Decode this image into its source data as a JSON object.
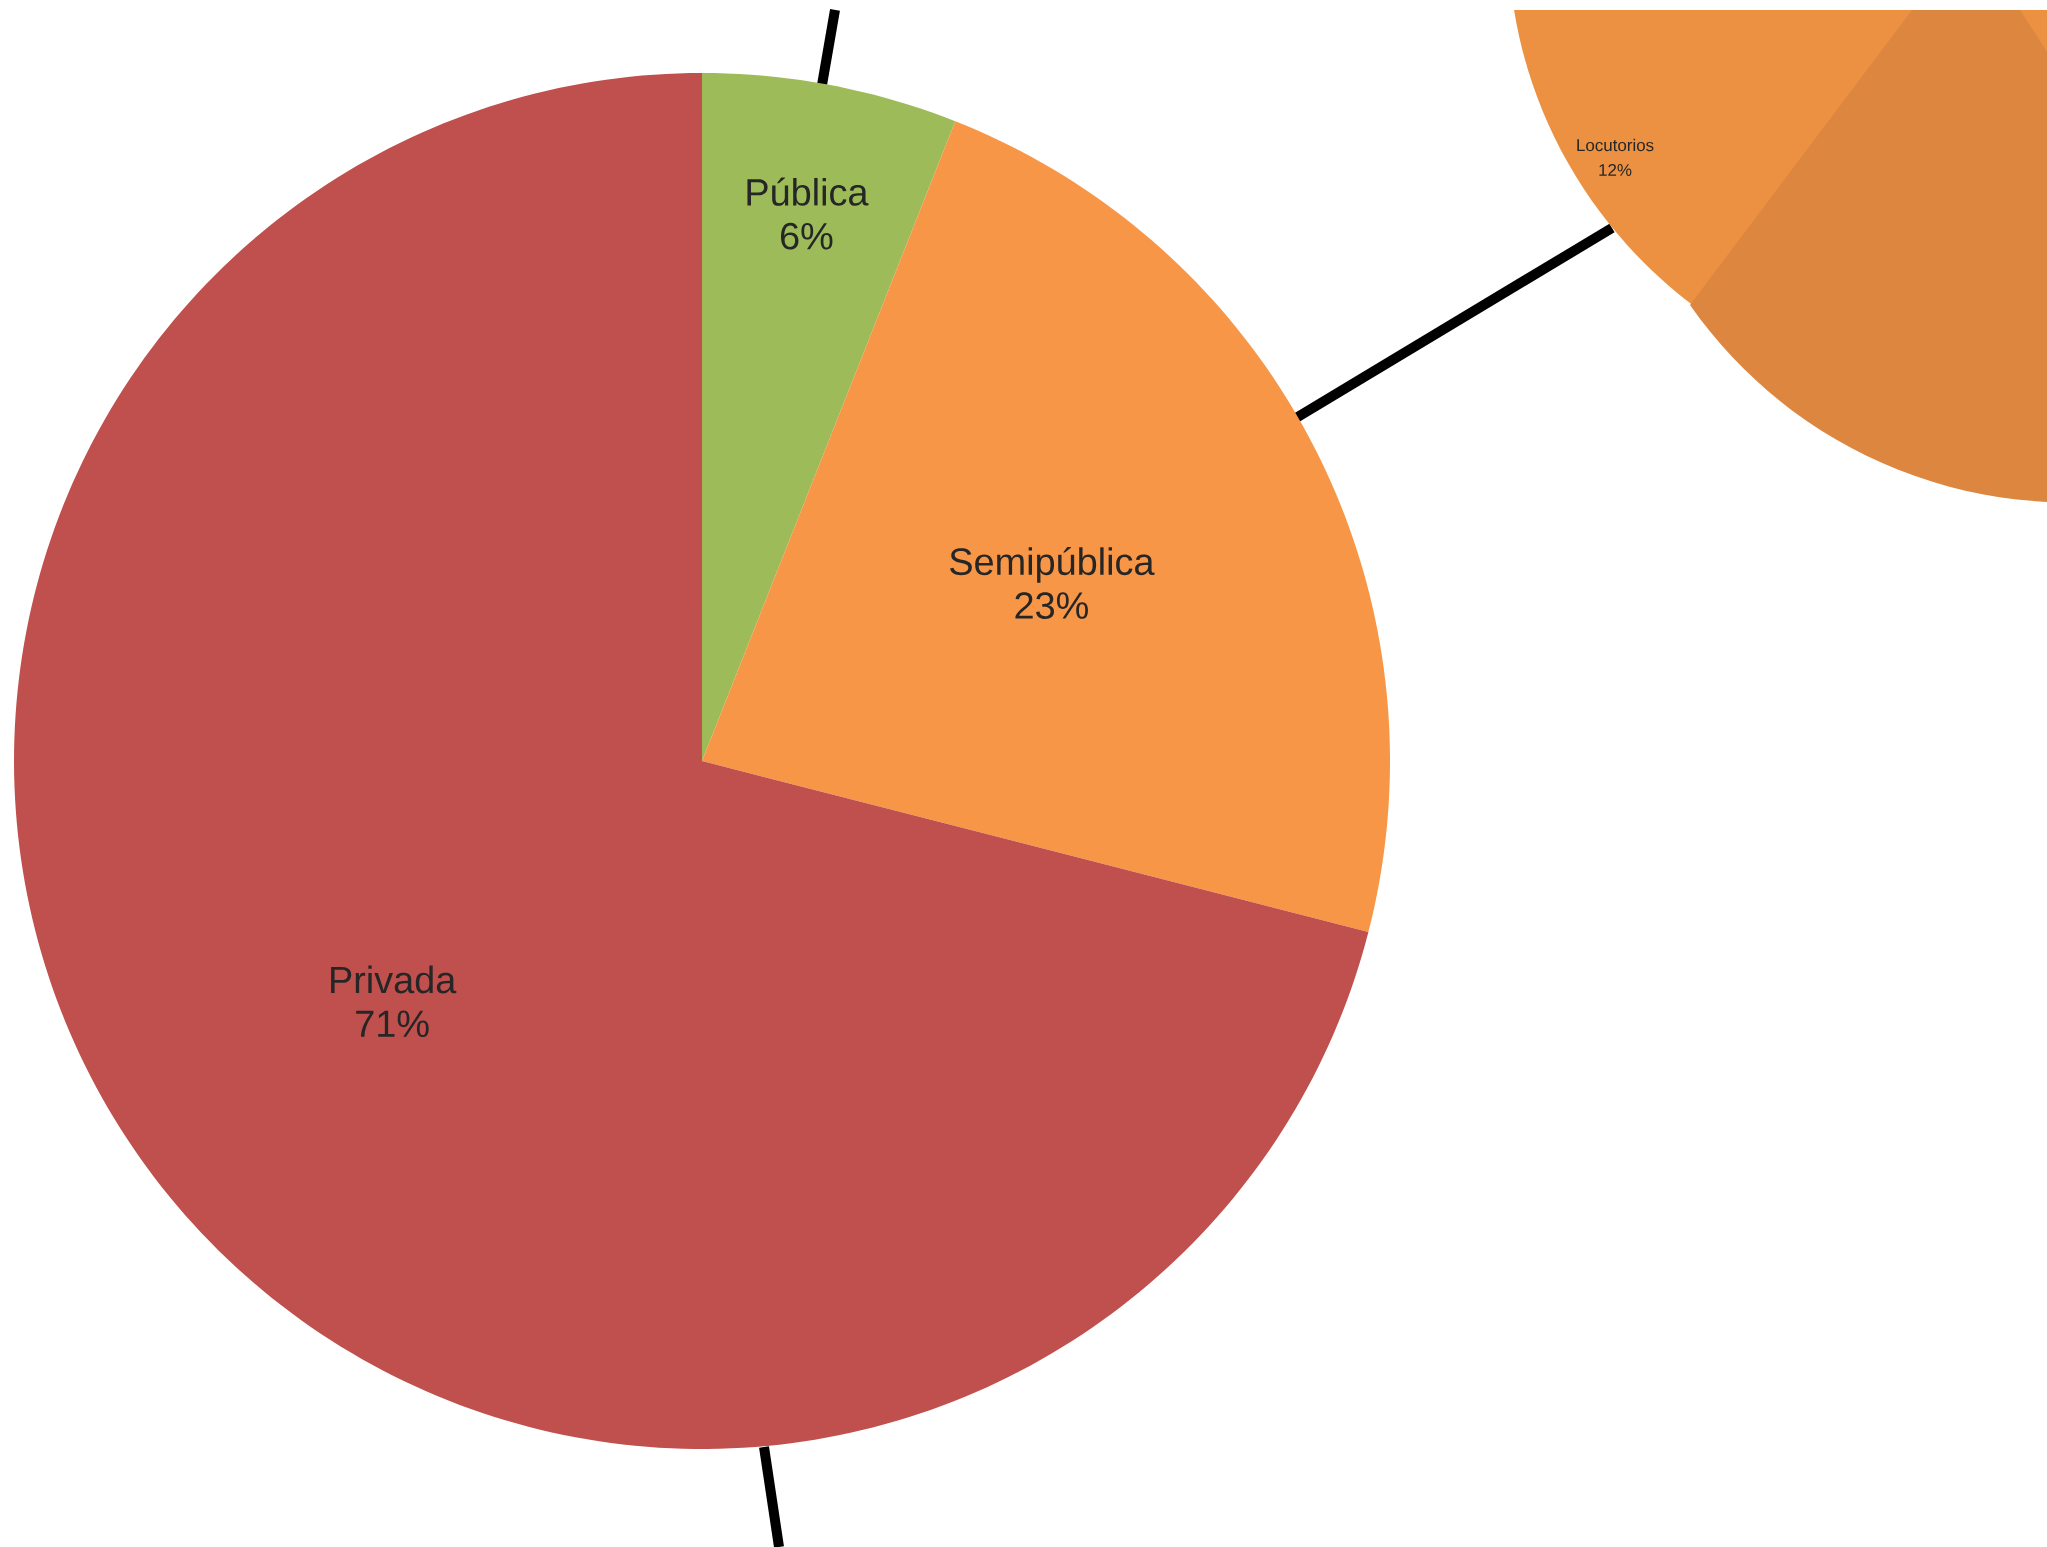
{
  "chart_data": [
    {
      "type": "pie",
      "categories": [
        "Pública",
        "Semipública",
        "Privada"
      ],
      "values": [
        6,
        23,
        71
      ],
      "value_labels": [
        "6%",
        "23%",
        "71%"
      ],
      "colors": [
        "#9dbb59",
        "#f79646",
        "#c0504d"
      ]
    },
    {
      "type": "other",
      "annotations": [
        "Locutorios",
        "12%"
      ]
    }
  ]
}
